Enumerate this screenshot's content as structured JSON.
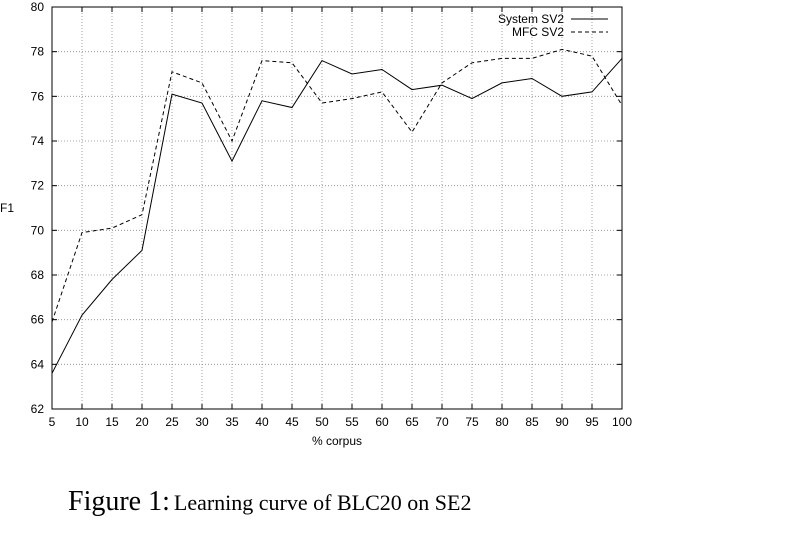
{
  "chart_data": {
    "type": "line",
    "xlabel": "% corpus",
    "ylabel": "F1",
    "xlim": [
      5,
      100
    ],
    "ylim": [
      62,
      80
    ],
    "grid": true,
    "legend_position": "top-right",
    "x": [
      5,
      10,
      15,
      20,
      25,
      30,
      35,
      40,
      45,
      50,
      55,
      60,
      65,
      70,
      75,
      80,
      85,
      90,
      95,
      100
    ],
    "xticks": [
      "5",
      "10",
      "15",
      "20",
      "25",
      "30",
      "35",
      "40",
      "45",
      "50",
      "55",
      "60",
      "65",
      "70",
      "75",
      "80",
      "85",
      "90",
      "95",
      "100"
    ],
    "yticks": [
      "62",
      "64",
      "66",
      "68",
      "70",
      "72",
      "74",
      "76",
      "78",
      "80"
    ],
    "series": [
      {
        "name": "System SV2",
        "style": "solid",
        "values": [
          63.6,
          66.2,
          67.8,
          69.1,
          76.1,
          75.7,
          73.1,
          75.8,
          75.5,
          77.6,
          77.0,
          77.2,
          76.3,
          76.5,
          75.9,
          76.6,
          76.8,
          76.0,
          76.2,
          77.7
        ]
      },
      {
        "name": "MFC SV2",
        "style": "dashed",
        "values": [
          65.9,
          69.9,
          70.1,
          70.7,
          77.1,
          76.6,
          74.0,
          77.6,
          77.5,
          75.7,
          75.9,
          76.2,
          74.4,
          76.6,
          77.5,
          77.7,
          77.7,
          78.1,
          77.8,
          75.6
        ]
      }
    ]
  },
  "caption": {
    "label": "Figure 1:",
    "text": "Learning curve of BLC20 on SE2"
  }
}
